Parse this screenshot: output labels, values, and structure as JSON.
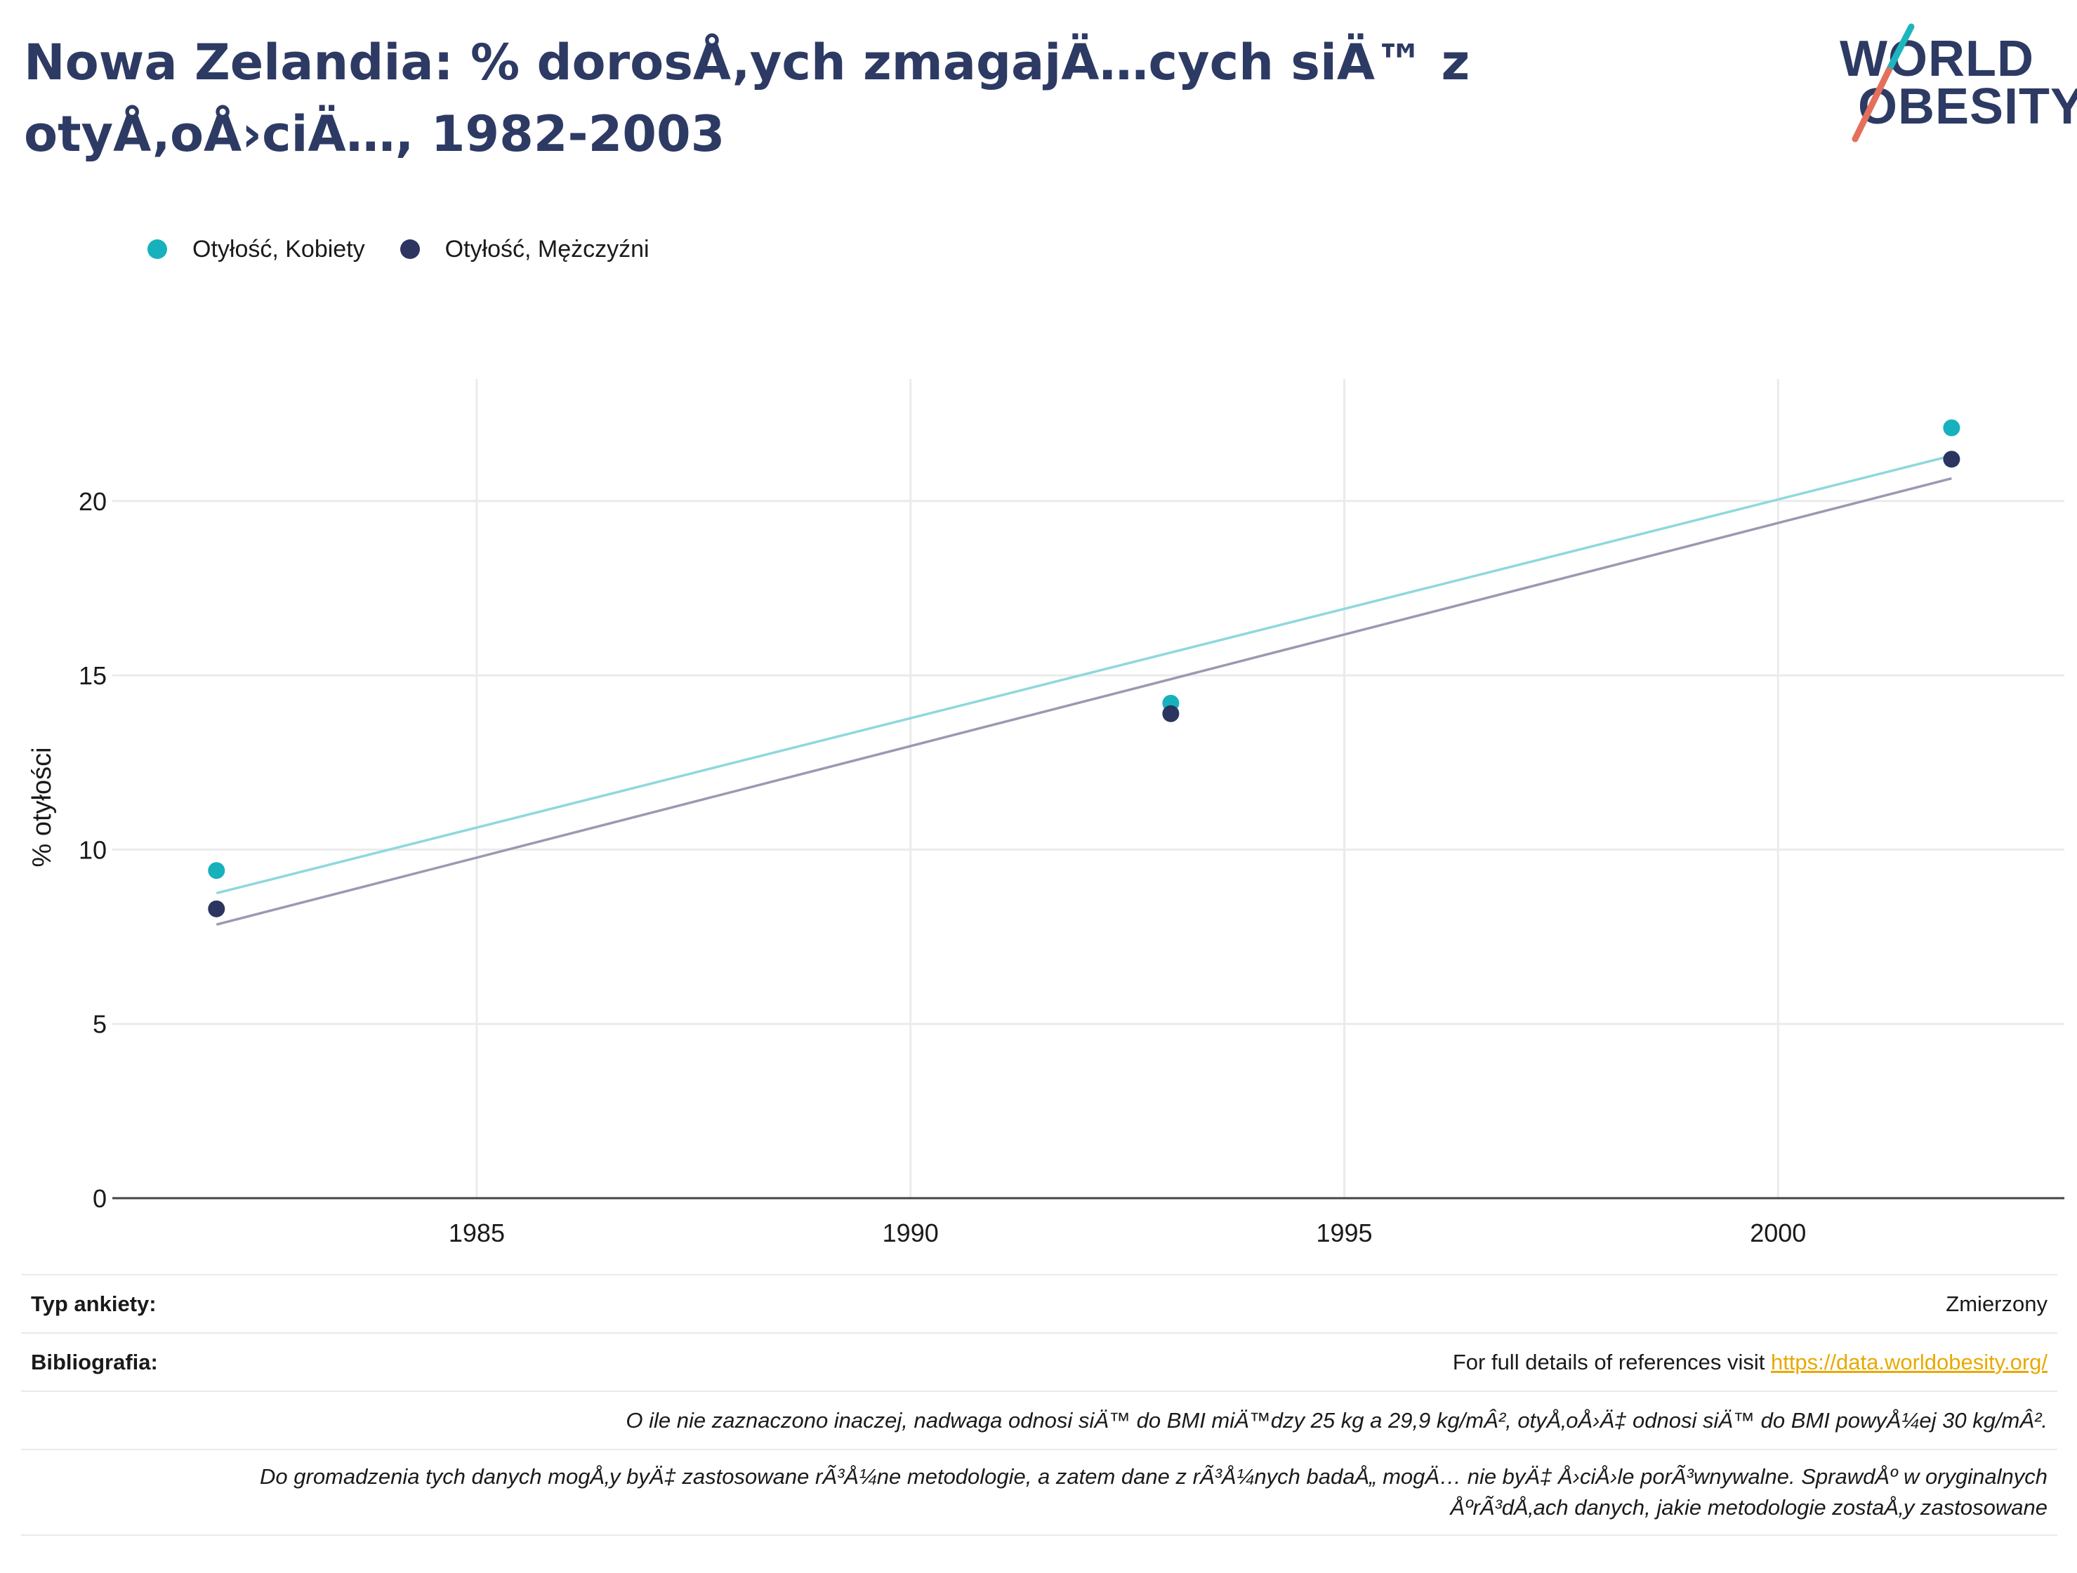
{
  "title": "Nowa Zelandia: % dorosÅ‚ych zmagajÄ…cych siÄ™ z otyÅ‚oÅ›ciÄ…, 1982-2003",
  "logo": {
    "line1": "WORLD",
    "line2": "OBESITY",
    "colors": {
      "navy": "#2d3a63",
      "teal": "#1fb5bd",
      "coral": "#e4705c"
    }
  },
  "legend": [
    {
      "label": "Otyłość, Kobiety",
      "color": "#16b1bd"
    },
    {
      "label": "Otyłość, Mężczyźni",
      "color": "#2b3560"
    }
  ],
  "chart_data": {
    "type": "scatter",
    "ylabel": "% otyłości",
    "xlabel": "",
    "xlim": [
      1980.8,
      2003.3
    ],
    "ylim": [
      0,
      23.5
    ],
    "xticks": [
      1985,
      1990,
      1995,
      2000
    ],
    "yticks": [
      0,
      5,
      10,
      15,
      20
    ],
    "grid": true,
    "legend_position": "top-left",
    "series": [
      {
        "name": "Otyłość, Kobiety",
        "color": "#16b1bd",
        "trend_color": "#8ed8dd",
        "points": [
          {
            "x": 1982,
            "y": 9.4
          },
          {
            "x": 1993,
            "y": 14.2
          },
          {
            "x": 2002,
            "y": 22.1
          }
        ],
        "trendline": [
          {
            "x": 1982,
            "y": 8.75
          },
          {
            "x": 2002,
            "y": 21.3
          }
        ]
      },
      {
        "name": "Otyłość, Mężczyźni",
        "color": "#2b3560",
        "trend_color": "#9b99b0",
        "points": [
          {
            "x": 1982,
            "y": 8.3
          },
          {
            "x": 1993,
            "y": 13.9
          },
          {
            "x": 2002,
            "y": 21.2
          }
        ],
        "trendline": [
          {
            "x": 1982,
            "y": 7.85
          },
          {
            "x": 2002,
            "y": 20.65
          }
        ]
      }
    ]
  },
  "footer": {
    "survey_label": "Typ ankiety:",
    "survey_value": "Zmierzony",
    "biblio_label": "Bibliografia:",
    "biblio_text": "For full details of references visit ",
    "biblio_link": "https://data.worldobesity.org/",
    "note1": "O ile nie zaznaczono inaczej, nadwaga odnosi siÄ™ do BMI miÄ™dzy 25 kg a 29,9 kg/mÂ², otyÅ‚oÅ›Ä‡ odnosi siÄ™ do BMI powyÅ¼ej 30 kg/mÂ².",
    "note2_line1": "Do gromadzenia tych danych mogÅ‚y byÄ‡ zastosowane rÃ³Å¼ne metodologie, a zatem dane z rÃ³Å¼nych badaÅ„ mogÄ… nie byÄ‡ Å›ciÅ›le porÃ³wnywalne. SprawdÅº w oryginalnych",
    "note2_line2": "ÅºrÃ³dÅ‚ach danych, jakie metodologie zostaÅ‚y zastosowane"
  }
}
